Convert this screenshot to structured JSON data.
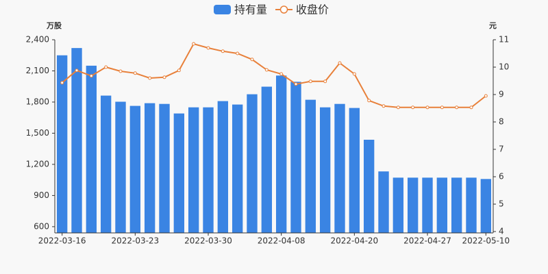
{
  "chart_data": {
    "type": "bar-line",
    "y_unit": "万股",
    "y2_unit": "元",
    "categories": [
      "2022-03-16",
      null,
      null,
      null,
      null,
      "2022-03-23",
      null,
      null,
      null,
      null,
      "2022-03-30",
      null,
      null,
      null,
      null,
      "2022-04-08",
      null,
      null,
      null,
      null,
      "2022-04-20",
      null,
      null,
      null,
      null,
      "2022-04-27",
      null,
      null,
      null,
      "2022-05-10"
    ],
    "series": [
      {
        "name": "持有量",
        "type": "bar",
        "color": "#3a84e3",
        "values": [
          2250,
          2320,
          2150,
          1862,
          1803,
          1763,
          1789,
          1782,
          1690,
          1749,
          1749,
          1809,
          1776,
          1875,
          1948,
          2055,
          1995,
          1822,
          1749,
          1782,
          1743,
          1437,
          1132,
          1072,
          1072,
          1072,
          1072,
          1072,
          1072,
          1059
        ]
      },
      {
        "name": "收盘价",
        "type": "line",
        "axis": "y2",
        "color": "#e8803a",
        "values": [
          9.43,
          9.88,
          9.68,
          10.0,
          9.85,
          9.78,
          9.6,
          9.63,
          9.88,
          10.85,
          10.7,
          10.58,
          10.5,
          10.28,
          9.9,
          9.75,
          9.38,
          9.48,
          9.48,
          10.15,
          9.75,
          8.78,
          8.58,
          8.53,
          8.53,
          8.53,
          8.53,
          8.53,
          8.53,
          8.95
        ]
      }
    ],
    "ylim": [
      540,
      2400
    ],
    "yticks": [
      600,
      900,
      {
        "value": 1200,
        "label": "1,200"
      },
      {
        "value": 1500,
        "label": "1,500"
      },
      {
        "value": 1800,
        "label": "1,800"
      },
      {
        "value": 2100,
        "label": "2,100"
      },
      {
        "value": 2400,
        "label": "2,400"
      }
    ],
    "y2lim": [
      3.95,
      11
    ],
    "y2ticks": [
      4,
      5,
      6,
      7,
      8,
      9,
      10,
      11
    ]
  }
}
